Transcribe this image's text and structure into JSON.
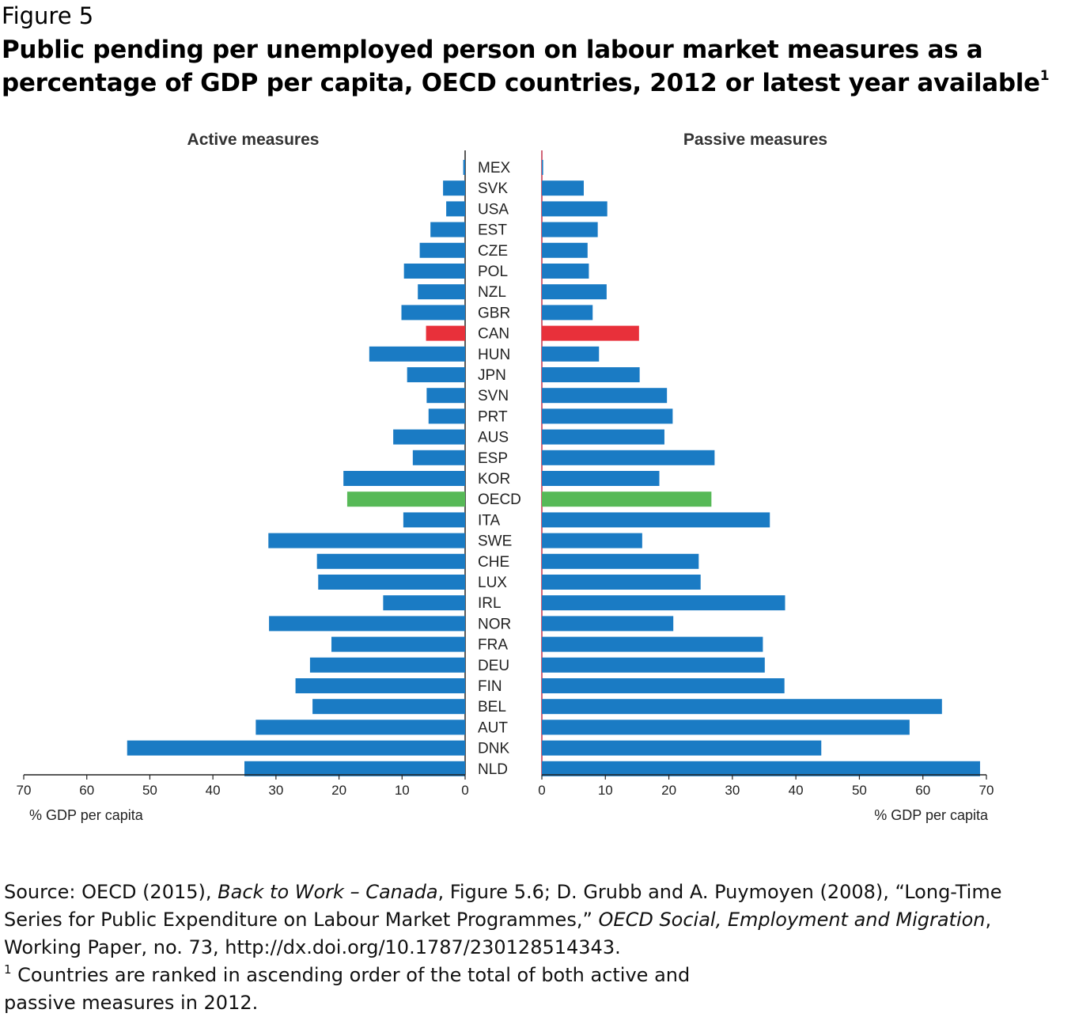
{
  "figure_label": "Figure 5",
  "title": "Public pending per unemployed person on labour market measures as a percentage of GDP per capita, OECD countries, 2012 or latest year available",
  "title_footnote_mark": "1",
  "source": {
    "prefix": "Source: OECD (2015), ",
    "work1": "Back to Work – Canada",
    "mid1": ", Figure 5.6; D. Grubb and A. Puymoyen (2008), “Long-Time Series for Public Expenditure on Labour Market Programmes,” ",
    "work2": "OECD Social, Employment and Migration",
    "suffix": ", Working Paper, no. 73, http://dx.doi.org/10.1787/230128514343."
  },
  "footnote": {
    "mark": "1",
    "text": " Countries are ranked in ascending order of the total of both active and passive measures in 2012."
  },
  "colors": {
    "default": "#1a7bc4",
    "highlight_canada": "#e8303a",
    "highlight_oecd": "#57b957"
  },
  "chart_data": {
    "type": "bar",
    "orientation": "horizontal",
    "layout": "back-to-back",
    "categories": [
      "MEX",
      "SVK",
      "USA",
      "EST",
      "CZE",
      "POL",
      "NZL",
      "GBR",
      "CAN",
      "HUN",
      "JPN",
      "SVN",
      "PRT",
      "AUS",
      "ESP",
      "KOR",
      "OECD",
      "ITA",
      "SWE",
      "CHE",
      "LUX",
      "IRL",
      "NOR",
      "FRA",
      "DEU",
      "FIN",
      "BEL",
      "AUT",
      "DNK",
      "NLD"
    ],
    "highlight": {
      "CAN": "highlight_canada",
      "OECD": "highlight_oecd"
    },
    "series": [
      {
        "name": "Active measures",
        "values": [
          0.3,
          3.5,
          3,
          5.5,
          7.2,
          9.7,
          7.5,
          10.1,
          6.2,
          15.2,
          9.2,
          6.1,
          5.8,
          11.4,
          8.3,
          19.3,
          18.7,
          9.8,
          31.2,
          23.5,
          23.3,
          13,
          31.1,
          21.2,
          24.6,
          26.9,
          24.2,
          33.2,
          53.6,
          35
        ]
      },
      {
        "name": "Passive measures",
        "values": [
          0.2,
          6.6,
          10.3,
          8.8,
          7.2,
          7.4,
          10.2,
          8,
          15.3,
          9,
          15.4,
          19.7,
          20.6,
          19.3,
          27.2,
          18.5,
          26.7,
          35.9,
          15.8,
          24.7,
          25,
          38.3,
          20.7,
          34.8,
          35.1,
          38.2,
          63,
          57.9,
          44,
          69
        ]
      }
    ],
    "xlim": [
      0,
      70
    ],
    "x_ticks": [
      0,
      10,
      20,
      30,
      40,
      50,
      60,
      70
    ],
    "xlabel": "% GDP per capita",
    "grid": false,
    "legend": "none"
  }
}
